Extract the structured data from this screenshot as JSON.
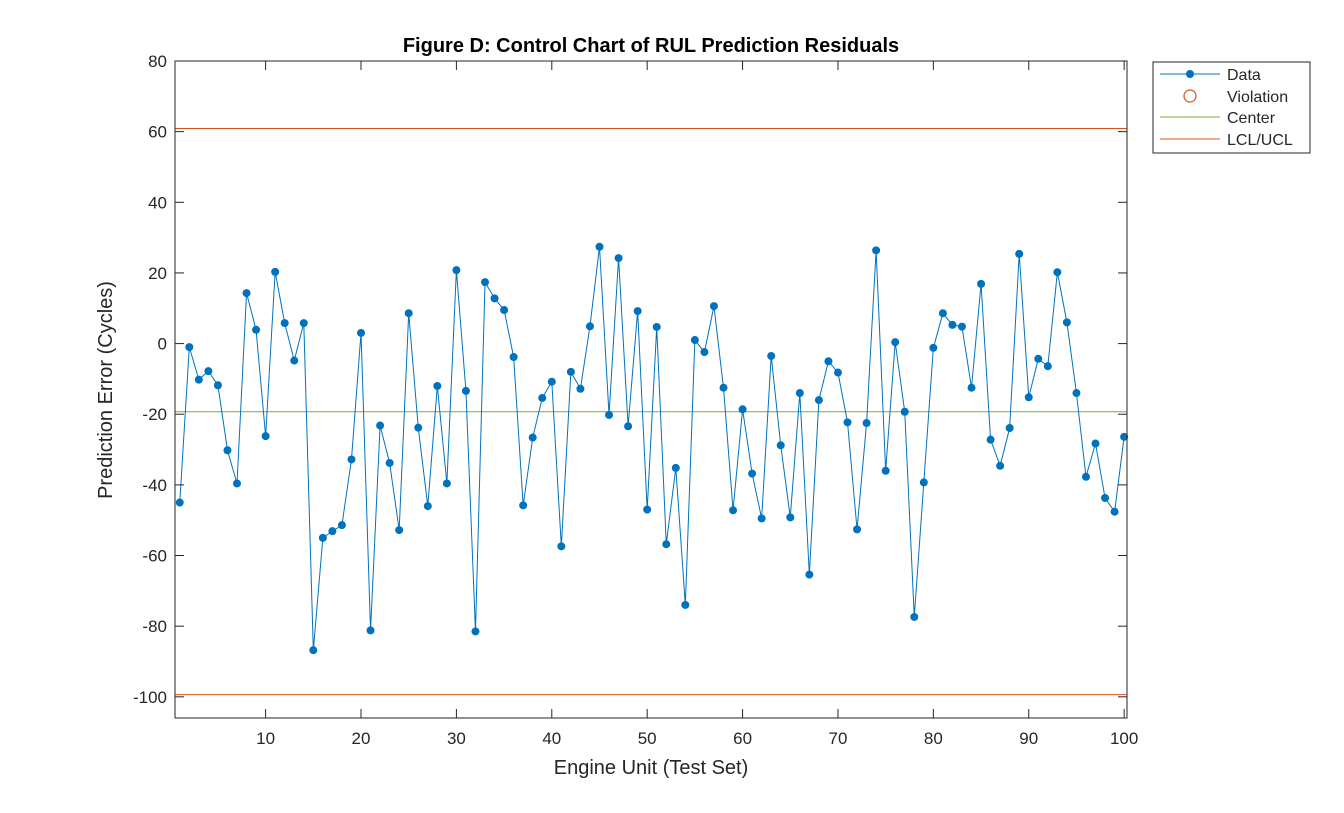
{
  "chart_data": {
    "type": "line",
    "title": "Figure D: Control Chart of RUL Prediction Residuals",
    "xlabel": "Engine Unit (Test Set)",
    "ylabel": "Prediction Error (Cycles)",
    "xlim": [
      0.5,
      100.3
    ],
    "ylim": [
      -106,
      80
    ],
    "xticks": [
      10,
      20,
      30,
      40,
      50,
      60,
      70,
      80,
      90,
      100
    ],
    "yticks": [
      -100,
      -80,
      -60,
      -40,
      -20,
      0,
      20,
      40,
      60,
      80
    ],
    "grid": false,
    "legend_position": "outside-top-right",
    "legend": [
      "Data",
      "Violation",
      "Center",
      "LCL/UCL"
    ],
    "center_line": -19.3,
    "lcl": -99.4,
    "ucl": 60.9,
    "violations": [],
    "colors": {
      "data": "#0072BD",
      "violation": "#D95319",
      "center": "#77AC30",
      "limits": "#D95319",
      "axes": "#262626"
    },
    "series": [
      {
        "name": "Data",
        "x": [
          1,
          2,
          3,
          4,
          5,
          6,
          7,
          8,
          9,
          10,
          11,
          12,
          13,
          14,
          15,
          16,
          17,
          18,
          19,
          20,
          21,
          22,
          23,
          24,
          25,
          26,
          27,
          28,
          29,
          30,
          31,
          32,
          33,
          34,
          35,
          36,
          37,
          38,
          39,
          40,
          41,
          42,
          43,
          44,
          45,
          46,
          47,
          48,
          49,
          50,
          51,
          52,
          53,
          54,
          55,
          56,
          57,
          58,
          59,
          60,
          61,
          62,
          63,
          64,
          65,
          66,
          67,
          68,
          69,
          70,
          71,
          72,
          73,
          74,
          75,
          76,
          77,
          78,
          79,
          80,
          81,
          82,
          83,
          84,
          85,
          86,
          87,
          88,
          89,
          90,
          91,
          92,
          93,
          94,
          95,
          96,
          97,
          98,
          99,
          100
        ],
        "values": [
          -45.0,
          -1.0,
          -10.2,
          -7.8,
          -11.8,
          -30.2,
          -39.6,
          14.3,
          3.9,
          -26.2,
          20.3,
          5.8,
          -4.8,
          5.8,
          -86.8,
          -55.0,
          -53.1,
          -51.4,
          -32.8,
          3.0,
          -81.2,
          -23.2,
          -33.8,
          -52.8,
          8.6,
          -23.8,
          -46.0,
          -12.0,
          -39.6,
          20.8,
          -13.4,
          -81.5,
          17.4,
          12.8,
          9.5,
          -3.8,
          -45.8,
          -26.6,
          -15.4,
          -10.8,
          -57.4,
          -8.0,
          -12.8,
          4.9,
          27.4,
          -20.2,
          24.2,
          -23.4,
          9.2,
          -47.0,
          4.7,
          -56.8,
          -35.2,
          -74.0,
          1.0,
          -2.4,
          10.6,
          -12.5,
          -47.2,
          -18.6,
          -36.8,
          -49.5,
          -3.5,
          -28.8,
          -49.2,
          -14.0,
          -65.4,
          -16.0,
          -5.0,
          -8.2,
          -22.3,
          -52.6,
          -22.5,
          26.4,
          -36.0,
          0.4,
          -19.3,
          -77.4,
          -39.3,
          -1.2,
          8.6,
          5.3,
          4.8,
          -12.5,
          16.9,
          -27.2,
          -34.6,
          -23.9,
          25.4,
          -15.2,
          -4.3,
          -6.4,
          20.2,
          6.0,
          -14.0,
          -37.7,
          -28.3,
          -43.7,
          -47.6,
          -26.4
        ]
      }
    ]
  }
}
